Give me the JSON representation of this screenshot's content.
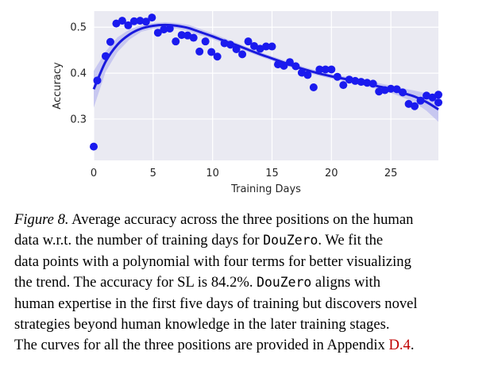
{
  "chart_data": {
    "type": "scatter",
    "xlabel": "Training Days",
    "ylabel": "Accuracy",
    "xlim": [
      0,
      29
    ],
    "ylim": [
      0.21,
      0.535
    ],
    "xticks": [
      0,
      5,
      10,
      15,
      20,
      25
    ],
    "yticks": [
      0.3,
      0.4,
      0.5
    ],
    "xtick_labels": [
      "0",
      "5",
      "10",
      "15",
      "20",
      "25"
    ],
    "ytick_labels": [
      "0.3",
      "0.4",
      "0.5"
    ],
    "grid": true,
    "background": "#eaeaf2",
    "point_color": "#1a1aee",
    "fit_color": "#1a1add",
    "band_color": "#b8b8f0",
    "points": [
      {
        "x": 0.0,
        "y": 0.24
      },
      {
        "x": 0.3,
        "y": 0.384
      },
      {
        "x": 1.0,
        "y": 0.437
      },
      {
        "x": 1.4,
        "y": 0.468
      },
      {
        "x": 1.9,
        "y": 0.508
      },
      {
        "x": 2.4,
        "y": 0.514
      },
      {
        "x": 2.9,
        "y": 0.504
      },
      {
        "x": 3.4,
        "y": 0.513
      },
      {
        "x": 3.9,
        "y": 0.514
      },
      {
        "x": 4.4,
        "y": 0.512
      },
      {
        "x": 4.9,
        "y": 0.521
      },
      {
        "x": 5.4,
        "y": 0.488
      },
      {
        "x": 5.9,
        "y": 0.495
      },
      {
        "x": 6.4,
        "y": 0.497
      },
      {
        "x": 6.9,
        "y": 0.469
      },
      {
        "x": 7.4,
        "y": 0.483
      },
      {
        "x": 7.9,
        "y": 0.482
      },
      {
        "x": 8.4,
        "y": 0.477
      },
      {
        "x": 8.9,
        "y": 0.447
      },
      {
        "x": 9.4,
        "y": 0.469
      },
      {
        "x": 9.9,
        "y": 0.446
      },
      {
        "x": 10.4,
        "y": 0.436
      },
      {
        "x": 11.0,
        "y": 0.465
      },
      {
        "x": 11.5,
        "y": 0.462
      },
      {
        "x": 12.0,
        "y": 0.452
      },
      {
        "x": 12.5,
        "y": 0.441
      },
      {
        "x": 13.0,
        "y": 0.469
      },
      {
        "x": 13.5,
        "y": 0.459
      },
      {
        "x": 14.0,
        "y": 0.453
      },
      {
        "x": 14.5,
        "y": 0.458
      },
      {
        "x": 15.0,
        "y": 0.458
      },
      {
        "x": 15.5,
        "y": 0.419
      },
      {
        "x": 16.0,
        "y": 0.416
      },
      {
        "x": 16.5,
        "y": 0.424
      },
      {
        "x": 17.0,
        "y": 0.415
      },
      {
        "x": 17.5,
        "y": 0.401
      },
      {
        "x": 18.0,
        "y": 0.396
      },
      {
        "x": 18.5,
        "y": 0.369
      },
      {
        "x": 19.0,
        "y": 0.408
      },
      {
        "x": 19.5,
        "y": 0.408
      },
      {
        "x": 20.0,
        "y": 0.408
      },
      {
        "x": 20.5,
        "y": 0.392
      },
      {
        "x": 21.0,
        "y": 0.374
      },
      {
        "x": 21.5,
        "y": 0.386
      },
      {
        "x": 22.0,
        "y": 0.383
      },
      {
        "x": 22.5,
        "y": 0.381
      },
      {
        "x": 23.0,
        "y": 0.379
      },
      {
        "x": 23.5,
        "y": 0.377
      },
      {
        "x": 24.0,
        "y": 0.36
      },
      {
        "x": 24.5,
        "y": 0.363
      },
      {
        "x": 25.0,
        "y": 0.366
      },
      {
        "x": 25.5,
        "y": 0.365
      },
      {
        "x": 26.0,
        "y": 0.358
      },
      {
        "x": 26.5,
        "y": 0.333
      },
      {
        "x": 27.0,
        "y": 0.328
      },
      {
        "x": 27.5,
        "y": 0.34
      },
      {
        "x": 28.0,
        "y": 0.351
      },
      {
        "x": 28.5,
        "y": 0.347
      },
      {
        "x": 29.0,
        "y": 0.353
      },
      {
        "x": 29.0,
        "y": 0.336
      }
    ],
    "fit": {
      "x": [
        0,
        1,
        2,
        3,
        4,
        5,
        6,
        7,
        8,
        9,
        10,
        11,
        12,
        13,
        14,
        15,
        16,
        17,
        18,
        19,
        20,
        21,
        22,
        23,
        24,
        25,
        26,
        27,
        28,
        29
      ],
      "y": [
        0.365,
        0.425,
        0.462,
        0.484,
        0.497,
        0.503,
        0.505,
        0.503,
        0.498,
        0.489,
        0.48,
        0.47,
        0.461,
        0.451,
        0.441,
        0.432,
        0.423,
        0.414,
        0.406,
        0.399,
        0.393,
        0.388,
        0.383,
        0.377,
        0.371,
        0.365,
        0.357,
        0.349,
        0.337,
        0.321
      ],
      "band_upper": [
        0.405,
        0.447,
        0.478,
        0.495,
        0.504,
        0.509,
        0.511,
        0.509,
        0.505,
        0.496,
        0.486,
        0.476,
        0.466,
        0.456,
        0.446,
        0.437,
        0.428,
        0.419,
        0.411,
        0.404,
        0.398,
        0.393,
        0.388,
        0.383,
        0.378,
        0.373,
        0.367,
        0.362,
        0.356,
        0.348
      ],
      "band_lower": [
        0.325,
        0.403,
        0.446,
        0.473,
        0.49,
        0.497,
        0.499,
        0.497,
        0.491,
        0.482,
        0.474,
        0.464,
        0.456,
        0.446,
        0.436,
        0.427,
        0.418,
        0.409,
        0.401,
        0.394,
        0.388,
        0.383,
        0.378,
        0.371,
        0.364,
        0.357,
        0.347,
        0.336,
        0.318,
        0.294
      ]
    }
  },
  "caption": {
    "figure_label": "Figure 8.",
    "line1_rest": "Average accuracy across the three positions on the human",
    "line2_pre": "data w.r.t. the number of training days for ",
    "douzero": "DouZero",
    "line2_post": ". We fit the",
    "line3": "data points with a polynomial with four terms for better visualizing",
    "line4_pre": "the trend. The accuracy for SL is ",
    "sl_accuracy": "84.2%",
    "line4_mid": ". ",
    "line4_post": " aligns with",
    "line5": "human expertise in the first five days of training but discovers novel",
    "line6": "strategies beyond human knowledge in the later training stages.",
    "line7_pre": "The curves for all the three positions are provided in Appendix ",
    "appendix_ref": "D.4",
    "line7_post": "."
  }
}
